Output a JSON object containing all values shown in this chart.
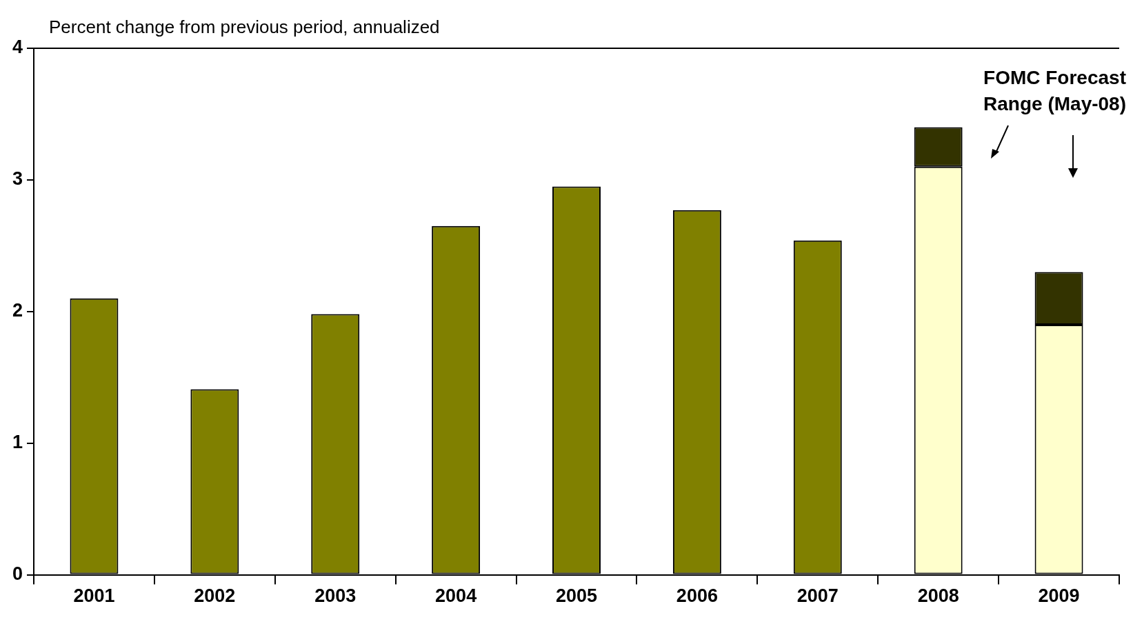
{
  "chart_data": {
    "type": "bar",
    "ylabel": "Percent change from previous period, annualized",
    "categories": [
      "2001",
      "2002",
      "2003",
      "2004",
      "2005",
      "2006",
      "2007",
      "2008",
      "2009"
    ],
    "stacked": true,
    "series": [
      {
        "color": "#808000",
        "values": [
          2.1,
          1.41,
          1.98,
          2.65,
          2.95,
          2.77,
          2.54,
          null,
          null
        ]
      },
      {
        "color": "#ffffcc",
        "values": [
          null,
          null,
          null,
          null,
          null,
          null,
          null,
          3.1,
          1.9
        ]
      },
      {
        "color": "#333300",
        "values": [
          null,
          null,
          null,
          null,
          null,
          null,
          null,
          0.3,
          0.4
        ]
      }
    ],
    "ylim": [
      0,
      4
    ],
    "yticks": [
      0,
      1,
      2,
      3,
      4
    ],
    "grid": false,
    "legend": false,
    "annotations": [
      "FOMC Forecast Range (May-08)"
    ]
  }
}
